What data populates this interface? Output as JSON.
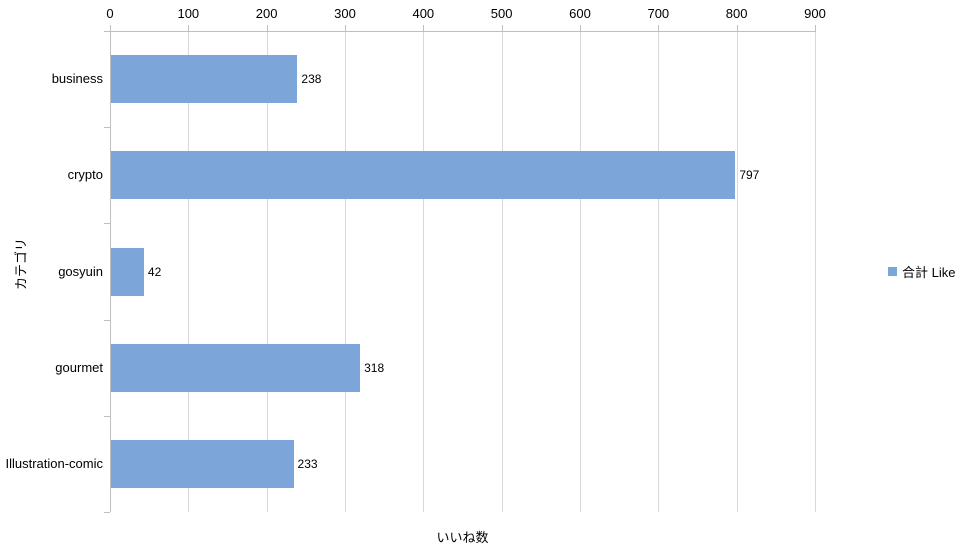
{
  "chart_data": {
    "type": "bar",
    "orientation": "horizontal",
    "title": "",
    "categories": [
      "business",
      "crypto",
      "gosyuin",
      "gourmet",
      "Illustration-comic"
    ],
    "values": [
      238,
      797,
      42,
      318,
      233
    ],
    "data_labels": [
      238,
      797,
      42,
      318,
      233
    ],
    "series_name": "合計 Like",
    "xlabel": "いいね数",
    "ylabel": "カテゴリ",
    "xlim": [
      0,
      900
    ],
    "xticks": [
      0,
      100,
      200,
      300,
      400,
      500,
      600,
      700,
      800,
      900
    ],
    "grid": true,
    "legend_position": "right",
    "value_axis_position": "top"
  },
  "colors": {
    "bar": "#7CA5D9",
    "gridline": "#D9D9D9",
    "axis_line": "#BFBFBF",
    "text": "#000000",
    "background": "#FFFFFF"
  }
}
